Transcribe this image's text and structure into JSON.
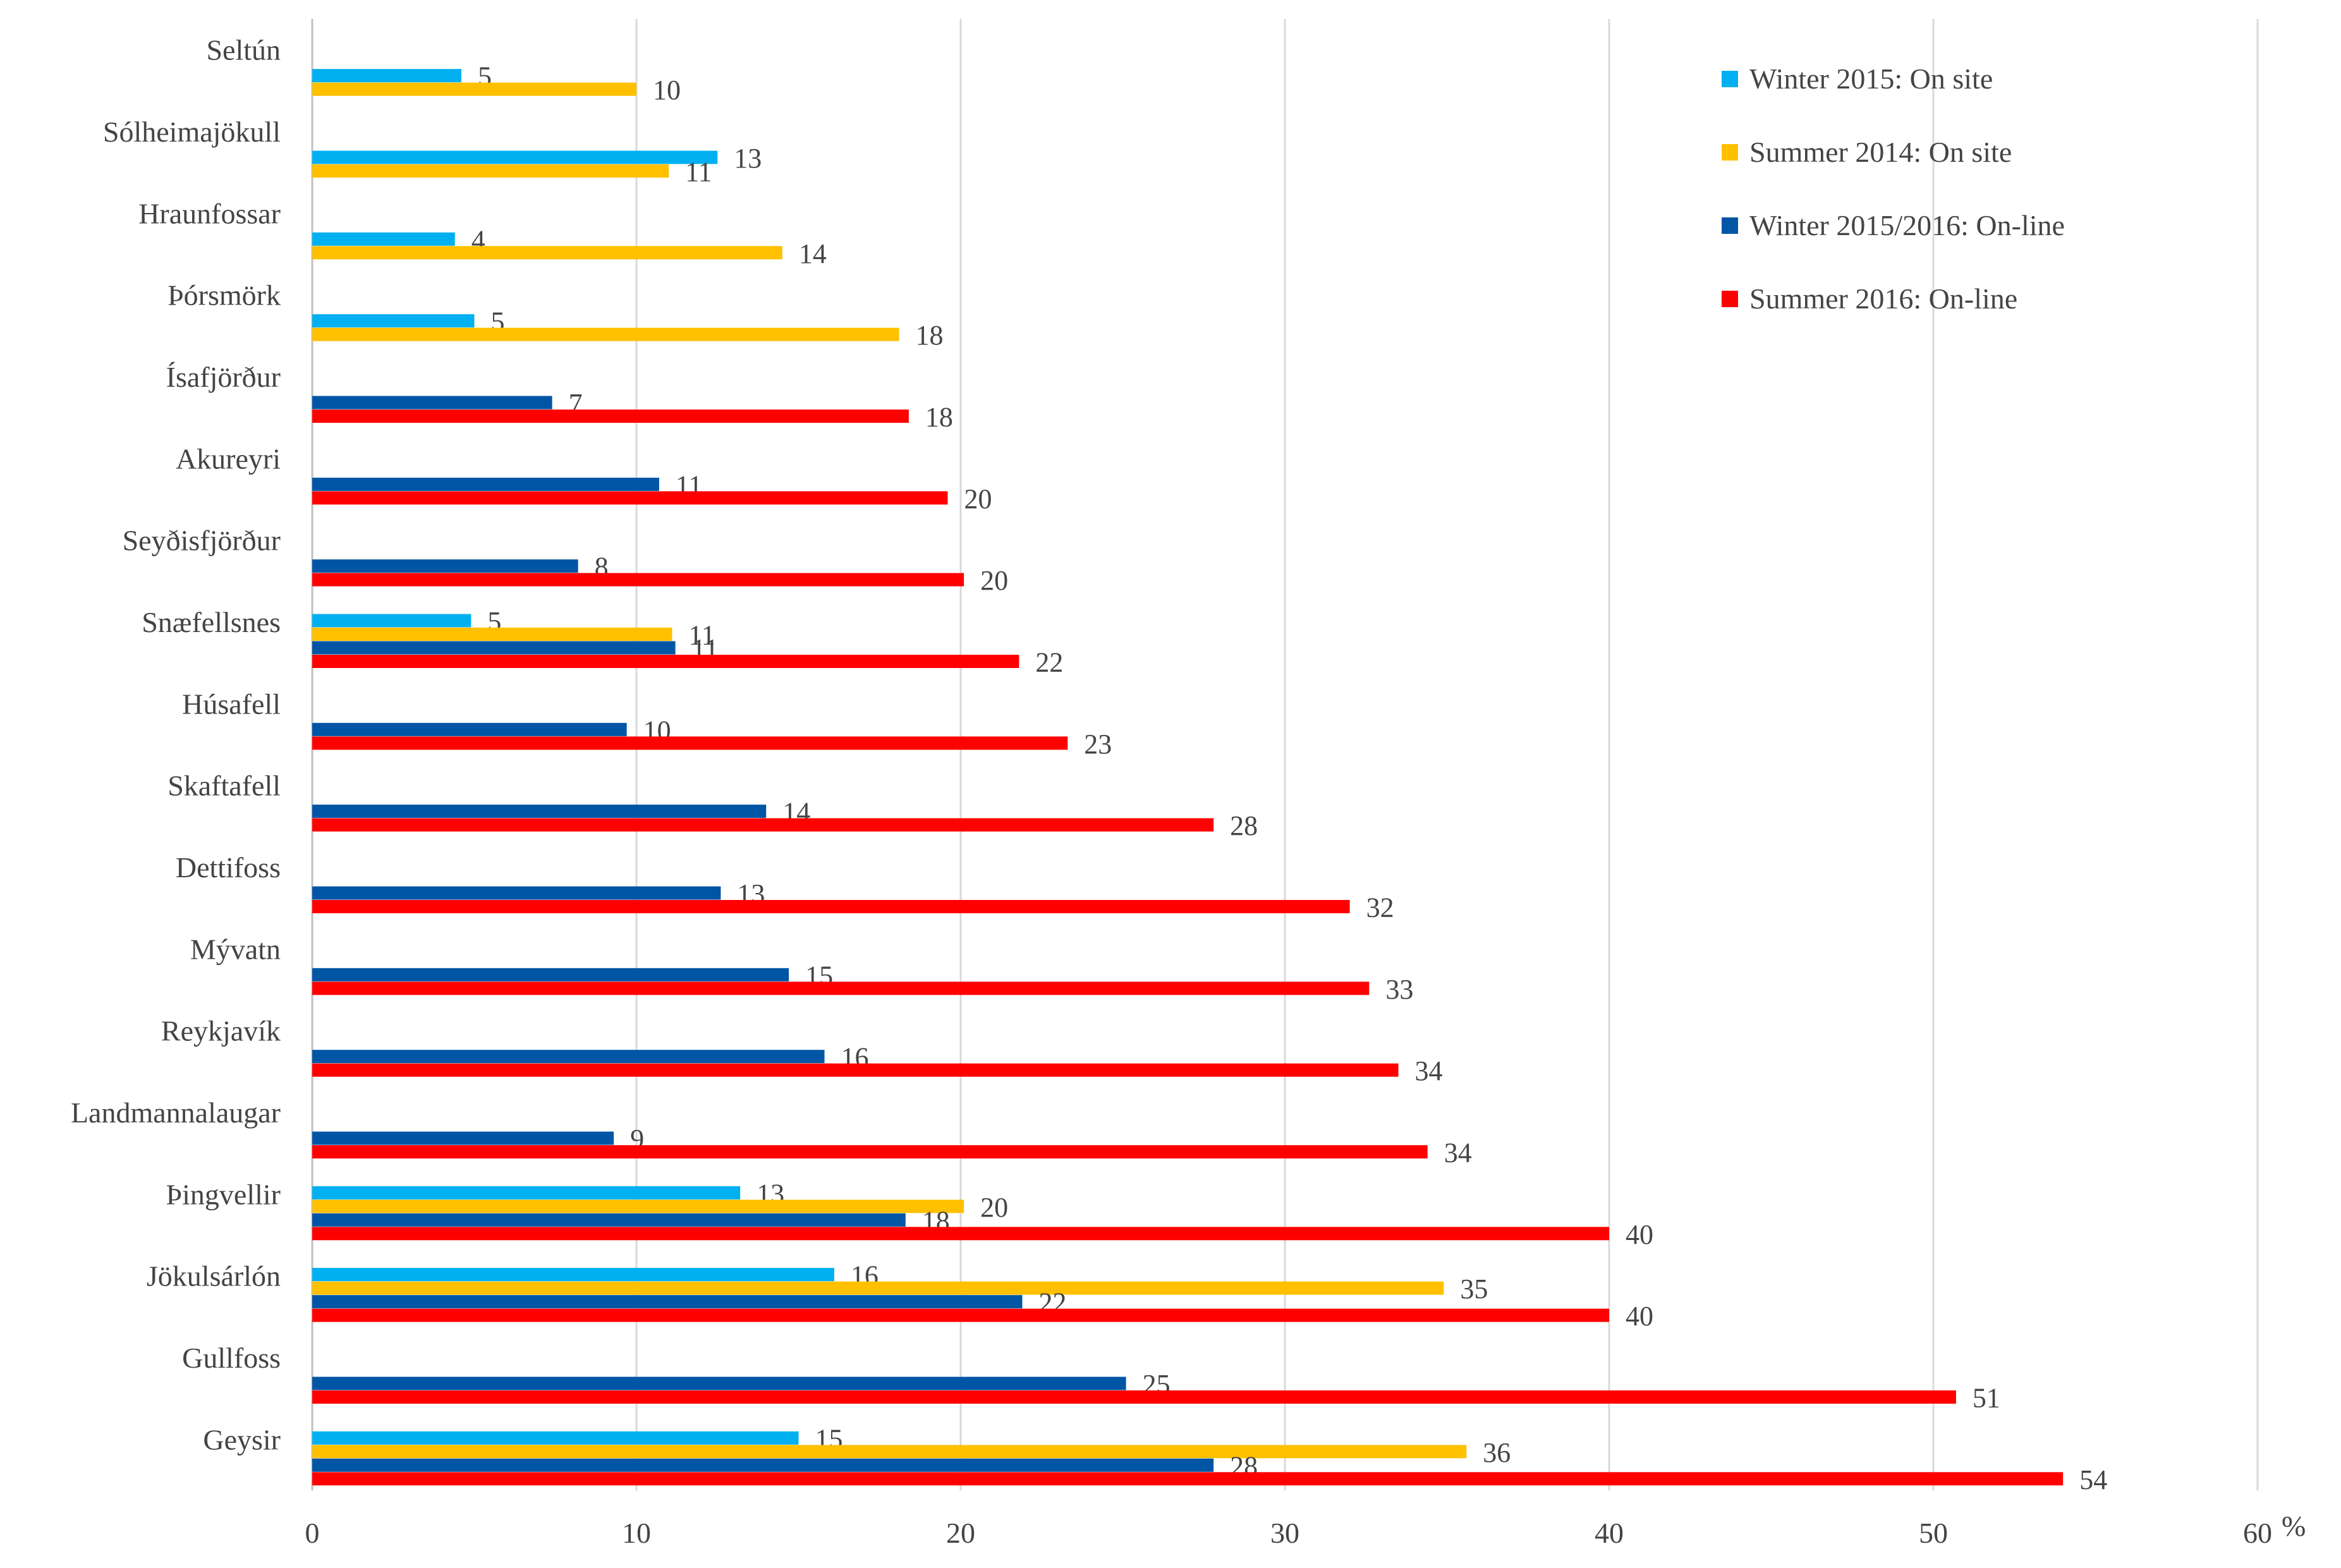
{
  "chart_data": {
    "type": "bar",
    "orientation": "horizontal",
    "title": "",
    "xlabel": "",
    "ylabel": "",
    "unit_label": "%",
    "xlim": [
      0,
      60
    ],
    "x_ticks": [
      "0",
      "10",
      "20",
      "30",
      "40",
      "50",
      "60"
    ],
    "grid": true,
    "legend_position": "top-right",
    "categories": [
      "Seltún",
      "Sólheimajökull",
      "Hraunfossar",
      "Þórsmörk",
      "Ísafjörður",
      "Akureyri",
      "Seyðisfjörður",
      "Snæfellsnes",
      "Húsafell",
      "Skaftafell",
      "Dettifoss",
      "Mývatn",
      "Reykjavík",
      "Landmannalaugar",
      "Þingvellir",
      "Jökulsárlón",
      "Gullfoss",
      "Geysir"
    ],
    "series": [
      {
        "name": "Winter 2015: On site",
        "color": "#00b0f0",
        "values": [
          4.6,
          12.5,
          4.4,
          5.0,
          null,
          null,
          null,
          4.9,
          null,
          null,
          null,
          null,
          null,
          null,
          13.2,
          16.1,
          null,
          15.0
        ],
        "labels": [
          "5",
          "13",
          "4",
          "5",
          "",
          "",
          "",
          "5",
          "",
          "",
          "",
          "",
          "",
          "",
          "13",
          "16",
          "",
          "15"
        ]
      },
      {
        "name": "Summer 2014: On site",
        "color": "#ffc000",
        "values": [
          10.0,
          11.0,
          14.5,
          18.1,
          null,
          null,
          null,
          11.1,
          null,
          null,
          null,
          null,
          null,
          null,
          20.1,
          34.9,
          null,
          35.6
        ],
        "labels": [
          "10",
          "11",
          "14",
          "18",
          "",
          "",
          "",
          "11",
          "",
          "",
          "",
          "",
          "",
          "",
          "20",
          "35",
          "",
          "36"
        ]
      },
      {
        "name": "Winter 2015/2016: On-line",
        "color": "#0055a5",
        "values": [
          null,
          null,
          null,
          null,
          7.4,
          10.7,
          8.2,
          11.2,
          9.7,
          14.0,
          12.6,
          14.7,
          15.8,
          9.3,
          18.3,
          21.9,
          25.1,
          27.8
        ],
        "labels": [
          "",
          "",
          "",
          "",
          "7",
          "11",
          "8",
          "11",
          "10",
          "14",
          "13",
          "15",
          "16",
          "9",
          "18",
          "22",
          "25",
          "28"
        ]
      },
      {
        "name": "Summer 2016: On-line",
        "color": "#ff0000",
        "values": [
          null,
          null,
          null,
          null,
          18.4,
          19.6,
          20.1,
          21.8,
          23.3,
          27.8,
          32.0,
          32.6,
          33.5,
          34.4,
          40.0,
          40.0,
          50.7,
          54.0
        ],
        "labels": [
          "",
          "",
          "",
          "",
          "18",
          "20",
          "20",
          "22",
          "23",
          "28",
          "32",
          "33",
          "34",
          "34",
          "40",
          "40",
          "51",
          "54"
        ]
      }
    ]
  }
}
